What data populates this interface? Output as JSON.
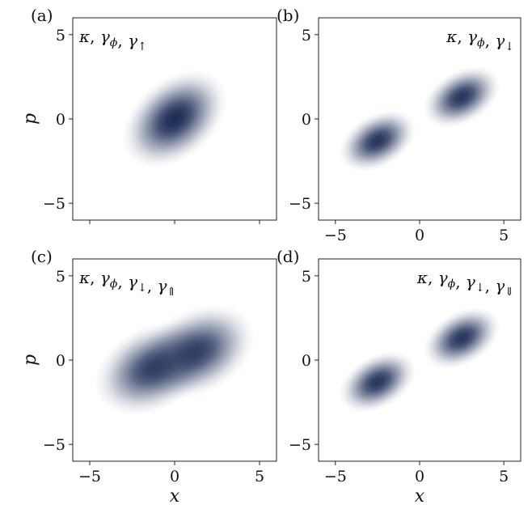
{
  "chart_data": [
    {
      "type": "heatmap",
      "panel_label": "(a)",
      "rates": [
        "κ",
        "γ",
        "γ"
      ],
      "rate_subscripts": [
        "",
        "ϕ",
        "↑"
      ],
      "rates_align": "top-left",
      "xlim": [
        -6,
        6
      ],
      "ylim": [
        -6,
        6
      ],
      "xticks": [
        -5,
        0,
        5
      ],
      "yticks": [
        -5,
        0,
        5
      ],
      "xlabel": "",
      "ylabel": "p",
      "show_xticklabels": false,
      "show_yticklabels": true,
      "color": "#1b2a55",
      "blobs": [
        {
          "x": 0.0,
          "y": 0.0,
          "sa": 1.35,
          "sb": 0.9,
          "angle_deg": 40,
          "amp": 1.0
        }
      ]
    },
    {
      "type": "heatmap",
      "panel_label": "(b)",
      "rates": [
        "κ",
        "γ",
        "γ"
      ],
      "rate_subscripts": [
        "",
        "ϕ",
        "↓"
      ],
      "rates_align": "top-right",
      "xlim": [
        -6,
        6
      ],
      "ylim": [
        -6,
        6
      ],
      "xticks": [
        -5,
        0,
        5
      ],
      "yticks": [
        -5,
        0,
        5
      ],
      "xlabel": "",
      "ylabel": "",
      "show_xticklabels": true,
      "show_yticklabels": true,
      "color": "#1b2a55",
      "blobs": [
        {
          "x": -2.5,
          "y": -1.3,
          "sa": 0.95,
          "sb": 0.6,
          "angle_deg": 30,
          "amp": 0.95
        },
        {
          "x": 2.5,
          "y": 1.3,
          "sa": 0.95,
          "sb": 0.6,
          "angle_deg": 30,
          "amp": 0.95
        }
      ]
    },
    {
      "type": "heatmap",
      "panel_label": "(c)",
      "rates": [
        "κ",
        "γ",
        "γ",
        "γ"
      ],
      "rate_subscripts": [
        "",
        "ϕ",
        "↓",
        "⇑"
      ],
      "rates_align": "top-left",
      "xlim": [
        -6,
        6
      ],
      "ylim": [
        -6,
        6
      ],
      "xticks": [
        -5,
        0,
        5
      ],
      "yticks": [
        -5,
        0,
        5
      ],
      "xlabel": "x",
      "ylabel": "p",
      "show_xticklabels": true,
      "show_yticklabels": true,
      "color": "#1b2a55",
      "blobs": [
        {
          "x": -1.3,
          "y": -0.5,
          "sa": 1.4,
          "sb": 0.95,
          "angle_deg": 28,
          "amp": 0.9
        },
        {
          "x": 1.3,
          "y": 0.5,
          "sa": 1.4,
          "sb": 0.95,
          "angle_deg": 28,
          "amp": 0.9
        }
      ]
    },
    {
      "type": "heatmap",
      "panel_label": "(d)",
      "rates": [
        "κ",
        "γ",
        "γ",
        "γ"
      ],
      "rate_subscripts": [
        "",
        "ϕ",
        "↓",
        "⇓"
      ],
      "rates_align": "top-right",
      "xlim": [
        -6,
        6
      ],
      "ylim": [
        -6,
        6
      ],
      "xticks": [
        -5,
        0,
        5
      ],
      "yticks": [
        -5,
        0,
        5
      ],
      "xlabel": "x",
      "ylabel": "",
      "show_xticklabels": true,
      "show_yticklabels": true,
      "color": "#1b2a55",
      "blobs": [
        {
          "x": -2.5,
          "y": -1.3,
          "sa": 0.95,
          "sb": 0.6,
          "angle_deg": 30,
          "amp": 0.95
        },
        {
          "x": 2.5,
          "y": 1.3,
          "sa": 0.95,
          "sb": 0.6,
          "angle_deg": 30,
          "amp": 0.95
        }
      ]
    }
  ]
}
